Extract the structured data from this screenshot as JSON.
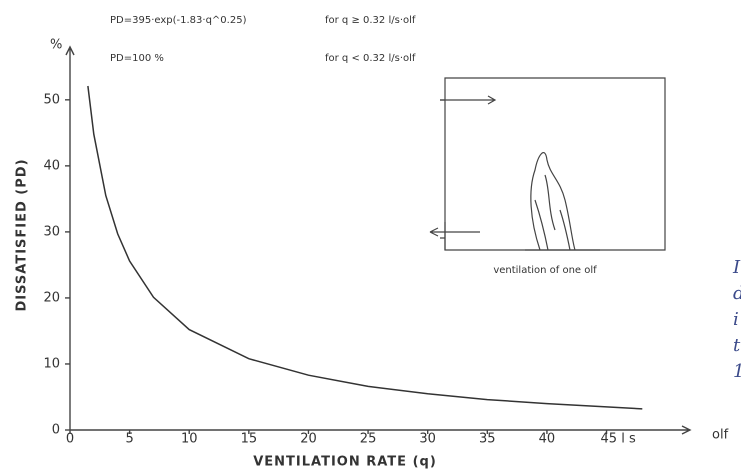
{
  "chart_data": {
    "type": "line",
    "y_unit": "%",
    "y_label": "DISSATISFIED (PD)",
    "x_label": "VENTILATION RATE (q)",
    "x_unit": "olf",
    "annotations": [
      {
        "formula": "PD=395·exp(-1.83·q^0.25)",
        "condition": "for q ≥ 0.32 l/s·olf"
      },
      {
        "formula": "PD=100 %",
        "condition": "for q < 0.32 l/s·olf"
      }
    ],
    "inset_caption": "ventilation of one olf",
    "side_text": [
      "I",
      "d",
      "i",
      "t",
      "1"
    ],
    "x": [
      1.5,
      2,
      3,
      4,
      5,
      7,
      10,
      15,
      20,
      25,
      30,
      35,
      40,
      45,
      48
    ],
    "values": [
      52.1,
      44.8,
      35.5,
      29.7,
      25.6,
      20.1,
      15.2,
      10.8,
      8.3,
      6.6,
      5.5,
      4.6,
      4.0,
      3.5,
      3.2
    ],
    "color": "#333333",
    "xlim": [
      0,
      52
    ],
    "ylim": [
      0,
      58
    ],
    "xticks": [
      0,
      5,
      10,
      15,
      20,
      25,
      30,
      35,
      40,
      {
        "value": 45,
        "label": "45 l s"
      }
    ],
    "yticks": [
      0,
      10,
      20,
      30,
      40,
      50
    ],
    "grid": false
  }
}
